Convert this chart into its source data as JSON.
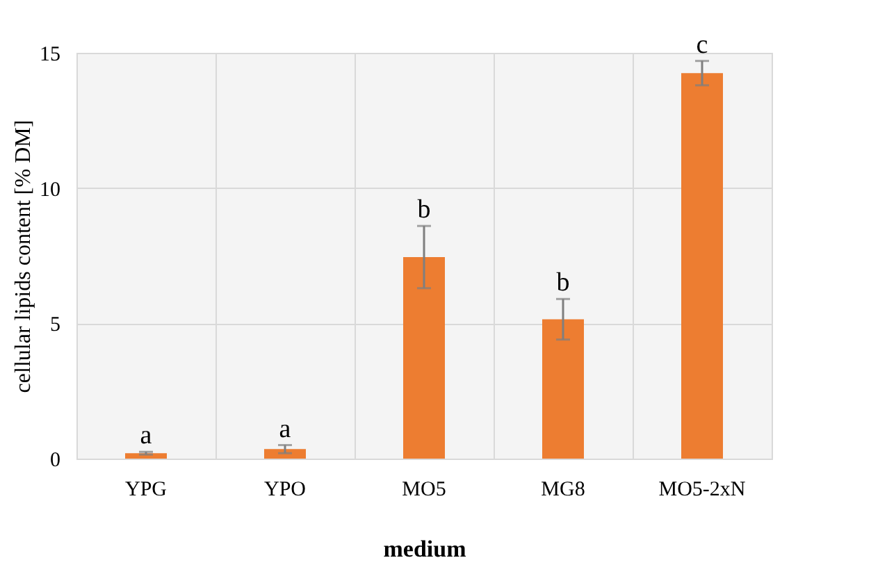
{
  "chart_data": {
    "type": "bar",
    "xlabel": "medium",
    "ylabel": "cellular lipids content [% DM]",
    "categories": [
      "YPG",
      "YPO",
      "MO5",
      "MG8",
      "MO5-2xN"
    ],
    "values": [
      0.2,
      0.35,
      7.45,
      5.15,
      14.25
    ],
    "errors": [
      0.05,
      0.15,
      1.15,
      0.75,
      0.45
    ],
    "color": "#ed7d31",
    "ylim": [
      0,
      15
    ],
    "yticks": [
      0,
      5,
      10,
      15
    ],
    "grid": true,
    "annotations": [
      {
        "text": "a",
        "x": "YPG",
        "y": 0.25
      },
      {
        "text": "a",
        "x": "YPO",
        "y": 0.5
      },
      {
        "text": "b",
        "x": "MO5",
        "y": 8.6
      },
      {
        "text": "b",
        "x": "MG8",
        "y": 5.9
      },
      {
        "text": "c",
        "x": "MO5-2xN",
        "y": 14.7
      }
    ]
  }
}
